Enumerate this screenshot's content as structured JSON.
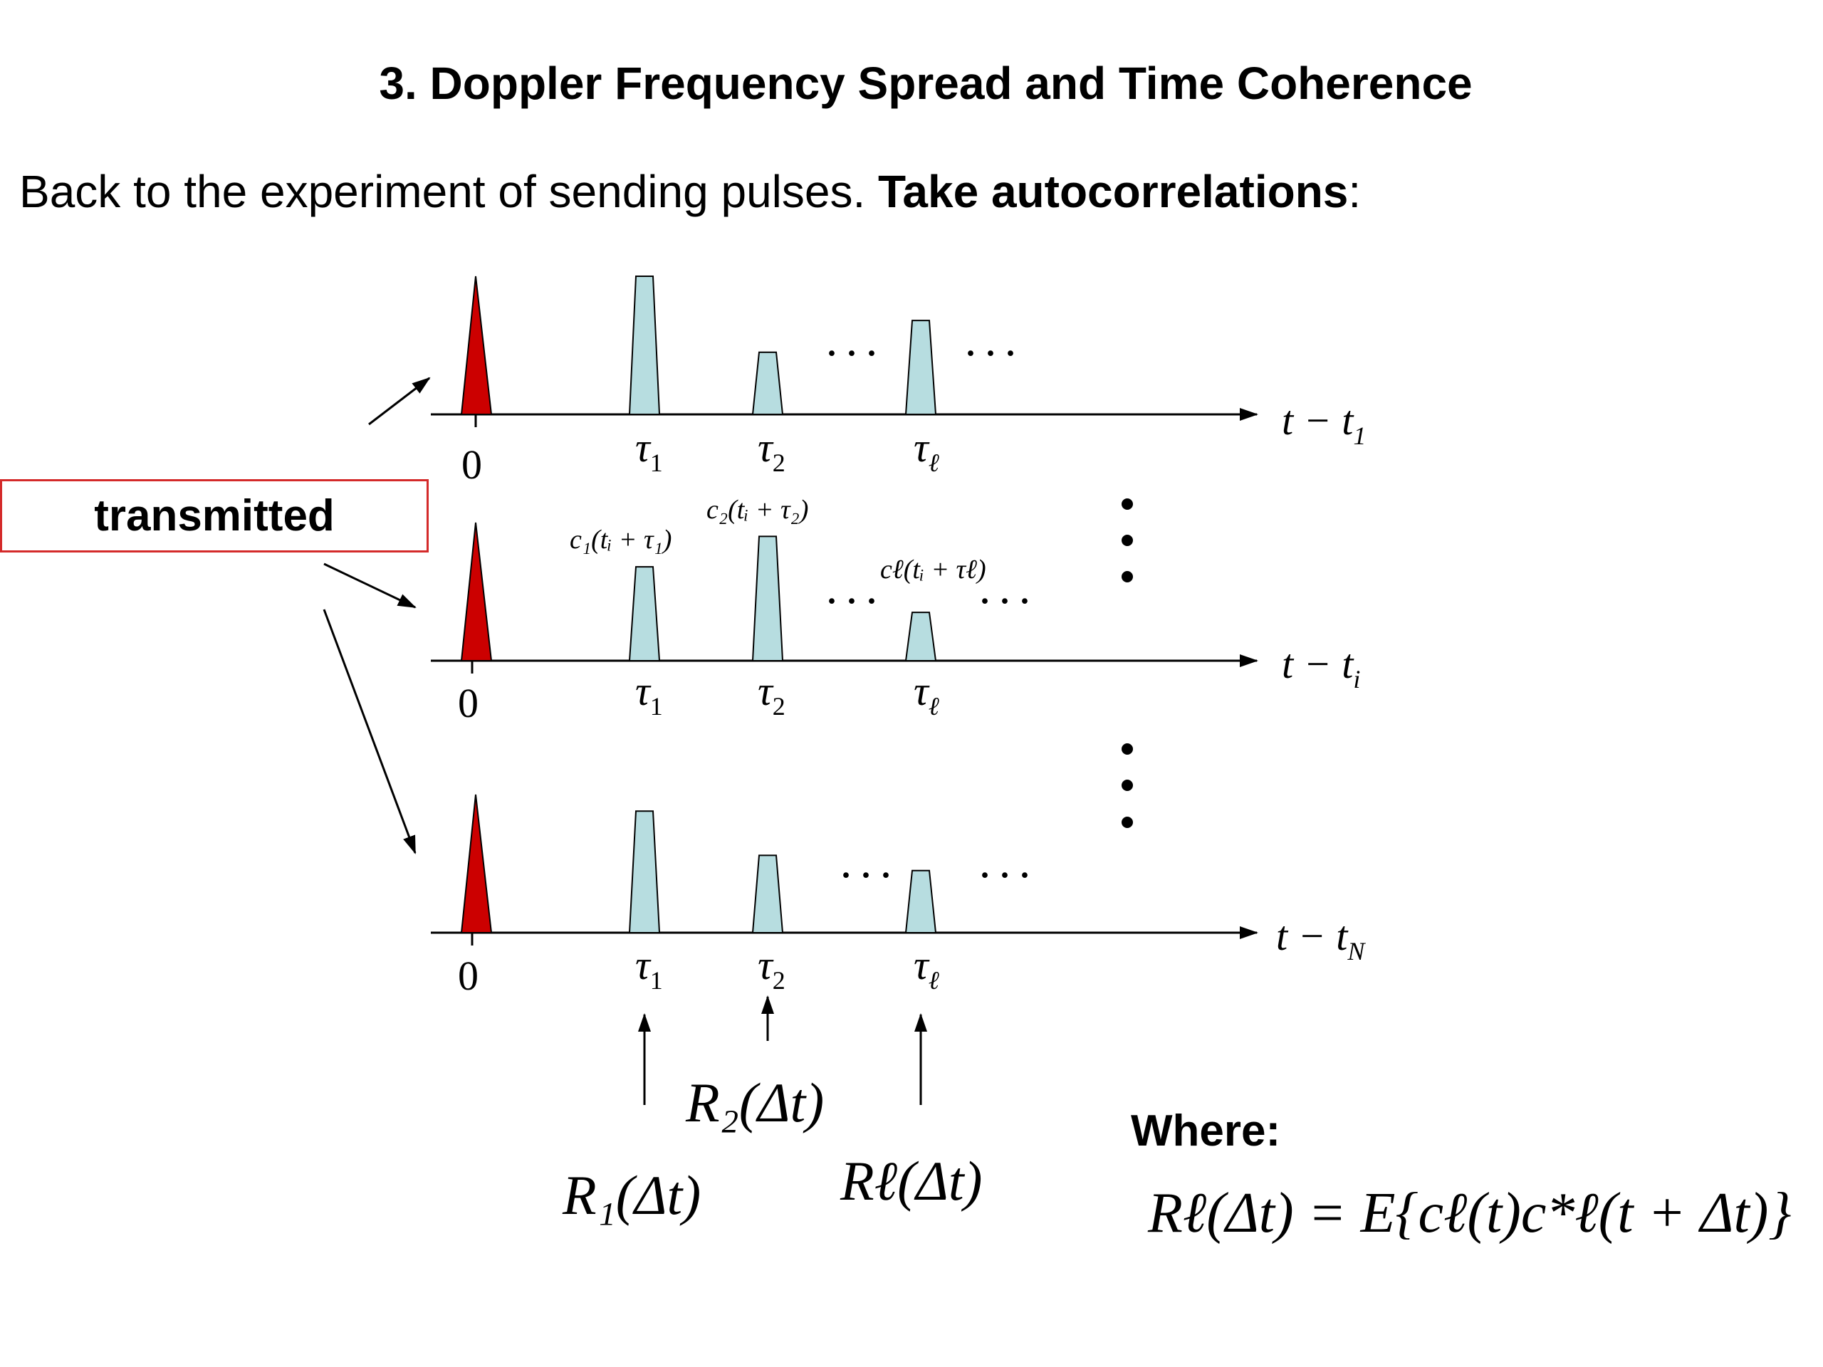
{
  "title": "3. Doppler Frequency Spread and Time Coherence",
  "intro": {
    "text": "Back to the experiment of sending pulses. ",
    "bold": "Take autocorrelations",
    "tail": ":"
  },
  "transmitted_label": "transmitted",
  "where_label": "Where:",
  "rows": [
    {
      "axis_label": "t − t",
      "axis_sub": "1",
      "tick_zero": "0",
      "taus": [
        "τ",
        "τ",
        "τ"
      ],
      "tau_subs": [
        "1",
        "2",
        "ℓ"
      ],
      "pulse_heights": [
        1.0,
        0.45,
        0.68
      ],
      "coef_labels": []
    },
    {
      "axis_label": "t − t",
      "axis_sub": "i",
      "tick_zero": "0",
      "taus": [
        "τ",
        "τ",
        "τ"
      ],
      "tau_subs": [
        "1",
        "2",
        "ℓ"
      ],
      "pulse_heights": [
        0.68,
        0.9,
        0.35
      ],
      "coef_labels": [
        "c₁(tᵢ + τ₁)",
        "c₂(tᵢ + τ₂)",
        "cℓ(tᵢ + τℓ)"
      ]
    },
    {
      "axis_label": "t − t",
      "axis_sub": "N",
      "tick_zero": "0",
      "taus": [
        "τ",
        "τ",
        "τ"
      ],
      "tau_subs": [
        "1",
        "2",
        "ℓ"
      ],
      "pulse_heights": [
        0.88,
        0.56,
        0.45
      ],
      "coef_labels": []
    }
  ],
  "ellipsis": "· · ·",
  "autocorr_labels": [
    "R₁(Δt)",
    "R₂(Δt)",
    "Rℓ(Δt)"
  ],
  "formula": "Rℓ(Δt) = E{cℓ(t)c*ℓ(t + Δt)}",
  "colors": {
    "transmit_pulse": "#cc0000",
    "echo_pulse": "#b7dde0",
    "box_border": "#d42a2a"
  }
}
